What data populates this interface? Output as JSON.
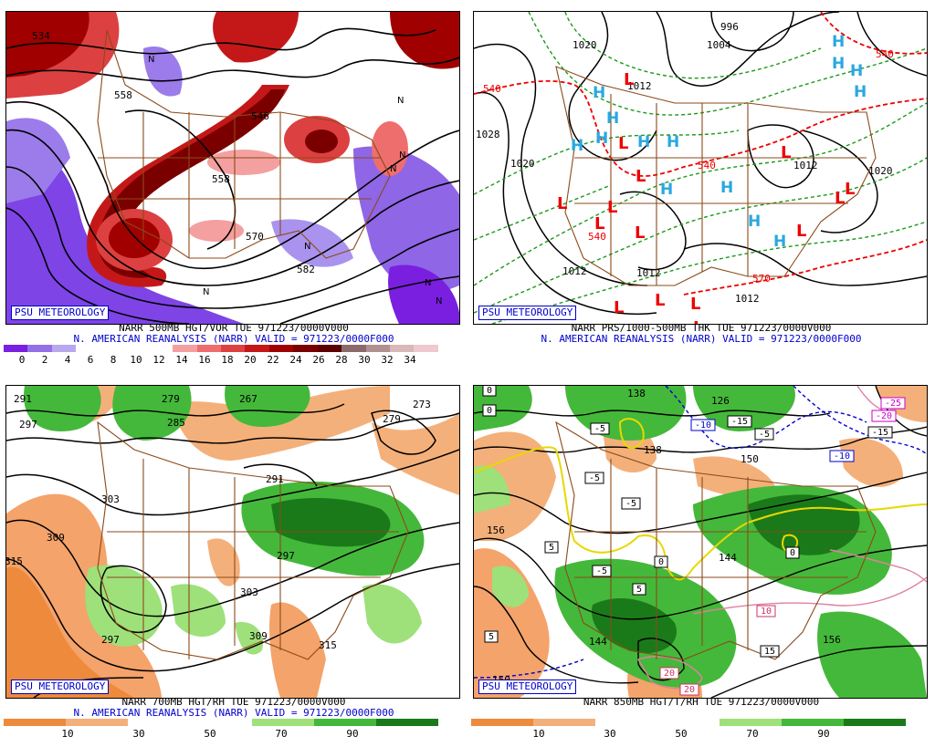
{
  "badge": "PSU METEOROLOGY",
  "panels": {
    "tl": {
      "title": "NARR 500MB HGT/VOR TUE 971223/0000V000",
      "valid": "N. AMERICAN REANALYSIS (NARR) VALID = 971223/0000F000",
      "colorbar": {
        "colors": [
          "#7a1fe0",
          "#9370e6",
          "#b8a8ee",
          "#ffffff",
          "#ffffff",
          "#ffffff",
          "#ffffff",
          "#f4a0a0",
          "#ee6e6e",
          "#dd4040",
          "#c41818",
          "#a00000",
          "#7a0000",
          "#5c0000",
          "#8a6a6a",
          "#b09090",
          "#d8b8b8",
          "#f0c8d0"
        ],
        "ticks": [
          "0",
          "2",
          "4",
          "6",
          "8",
          "10",
          "12",
          "14",
          "16",
          "18",
          "20",
          "22",
          "24",
          "26",
          "28",
          "30",
          "32",
          "34"
        ]
      },
      "contour_labels": [
        "534",
        "558",
        "546",
        "558",
        "570",
        "582"
      ],
      "markers": [
        "N",
        "N",
        "N",
        "N",
        "N",
        "N",
        "N",
        "N"
      ]
    },
    "tr": {
      "title": "NARR PRS/1000-500MB THK TUE 971223/0000V000",
      "valid": "N. AMERICAN REANALYSIS (NARR) VALID = 971223/0000F000",
      "pressure_labels": [
        "1028",
        "1020",
        "1020",
        "1012",
        "1004",
        "996",
        "1012",
        "1012",
        "1012",
        "1012",
        "1020"
      ],
      "thickness_labels": [
        "540",
        "540",
        "540",
        "570",
        "540"
      ],
      "highs": [
        "H",
        "H",
        "H",
        "H",
        "H",
        "H",
        "H",
        "H",
        "H",
        "H",
        "H",
        "H",
        "H",
        "H"
      ],
      "lows": [
        "L",
        "L",
        "L",
        "L",
        "L",
        "L",
        "L",
        "L",
        "L",
        "L",
        "L",
        "L",
        "L",
        "L",
        "L"
      ]
    },
    "bl": {
      "title": "NARR 700MB HGT/RH TUE 971223/0000V000",
      "valid": "N. AMERICAN REANALYSIS (NARR) VALID = 971223/0000F000",
      "colorbar": {
        "colors": [
          "#ee8a3c",
          "#f4b07a",
          "#ffffff",
          "#ffffff",
          "#9ee07a",
          "#44b83a",
          "#1a7a1a"
        ],
        "ticks": [
          "10",
          "30",
          "50",
          "70",
          "90"
        ]
      },
      "contour_labels": [
        "291",
        "279",
        "285",
        "267",
        "273",
        "279",
        "297",
        "303",
        "309",
        "315",
        "291",
        "297",
        "303",
        "309",
        "315",
        "297"
      ]
    },
    "br": {
      "title": "NARR 850MB HGT/T/RH TUE 971223/0000V000",
      "colorbar": {
        "colors": [
          "#ee8a3c",
          "#f4b07a",
          "#ffffff",
          "#ffffff",
          "#9ee07a",
          "#44b83a",
          "#1a7a1a"
        ],
        "ticks": [
          "10",
          "30",
          "50",
          "70",
          "90"
        ]
      },
      "height_labels": [
        "138",
        "126",
        "138",
        "156",
        "144",
        "150",
        "156",
        "144",
        "150"
      ],
      "temp_labels": [
        "0",
        "-5",
        "-5",
        "-5",
        "-10",
        "-15",
        "-5",
        "-25",
        "-20",
        "-15",
        "-10",
        "5",
        "-5",
        "5",
        "0",
        "0",
        "10",
        "15",
        "20",
        "20",
        "5",
        "0"
      ]
    }
  }
}
